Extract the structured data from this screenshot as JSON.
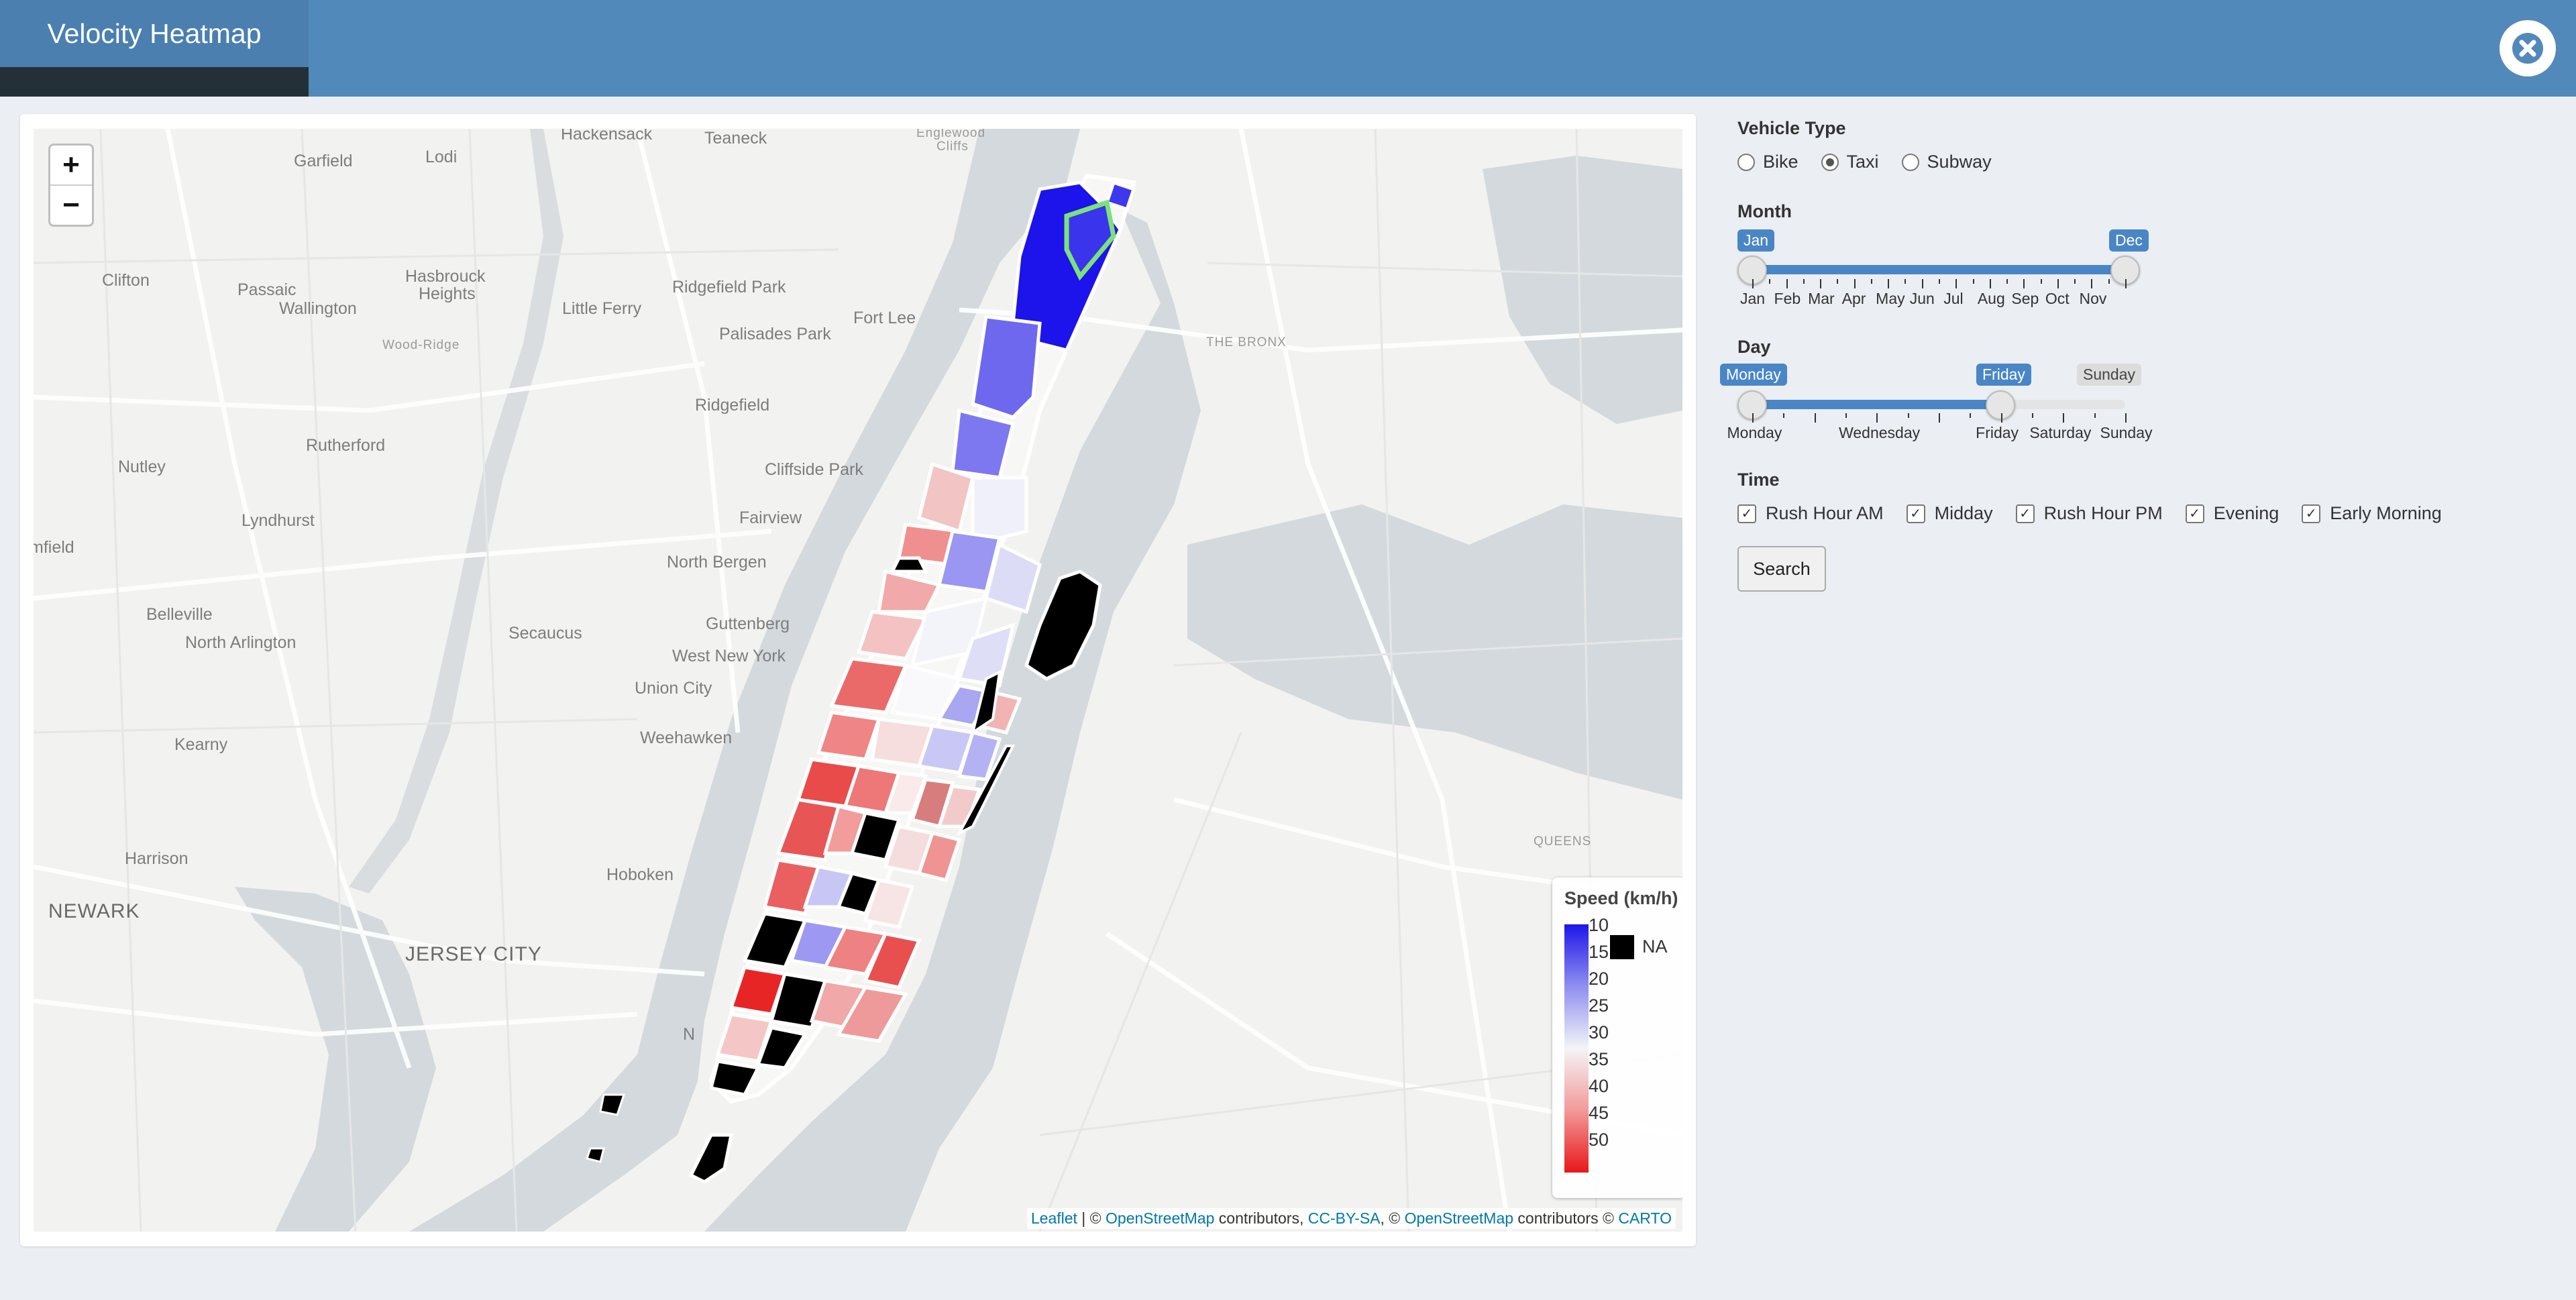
{
  "app": {
    "title": "Velocity Heatmap",
    "close_icon": "close-circle-icon"
  },
  "map": {
    "zoom_in": "+",
    "zoom_out": "−",
    "place_labels": [
      "Hackensack",
      "Teaneck",
      "Englewood",
      "Cliffs",
      "Garfield",
      "Lodi",
      "Clifton",
      "Passaic",
      "Wallington",
      "Hasbrouck",
      "Heights",
      "Ridgefield Park",
      "Little Ferry",
      "Fort Lee",
      "Palisades Park",
      "Wood-Ridge",
      "THE BRONX",
      "Ridgefield",
      "Rutherford",
      "Nutley",
      "Cliffside Park",
      "Lyndhurst",
      "Fairview",
      "North Bergen",
      "mfield",
      "Belleville",
      "Secaucus",
      "North Arlington",
      "Guttenberg",
      "West New York",
      "Union City",
      "Weehawken",
      "Kearny",
      "Harrison",
      "Hoboken",
      "NEWARK",
      "JERSEY CITY",
      "QUEENS",
      "N"
    ],
    "legend": {
      "title": "Speed (km/h)",
      "ticks": [
        "10",
        "15",
        "20",
        "25",
        "30",
        "35",
        "40",
        "45",
        "50"
      ],
      "na_label": "NA",
      "colors": {
        "slow": "#1f16e8",
        "mid": "#f4f4f7",
        "fast": "#e8171a",
        "na": "#000000"
      }
    },
    "attribution": {
      "leaflet": "Leaflet",
      "sep1": " | © ",
      "osm1": "OpenStreetMap",
      "mid1": " contributors, ",
      "carto_license": "CC-BY-SA",
      "mid2": ", © ",
      "osm2": "OpenStreetMap",
      "mid3": " contributors © ",
      "carto": "CARTO"
    }
  },
  "controls": {
    "vehicle_type": {
      "label": "Vehicle Type",
      "options": [
        "Bike",
        "Taxi",
        "Subway"
      ],
      "selected": "Taxi"
    },
    "month": {
      "label": "Month",
      "from": "Jan",
      "to": "Dec",
      "ticks": [
        "Jan",
        "Feb",
        "Mar",
        "Apr",
        "May",
        "Jun",
        "Jul",
        "Aug",
        "Sep",
        "Oct",
        "Nov"
      ]
    },
    "day": {
      "label": "Day",
      "from": "Monday",
      "to": "Friday",
      "max": "Sunday",
      "tick_labels": [
        "Monday",
        "Wednesday",
        "Friday",
        "Saturday",
        "Sunday"
      ]
    },
    "time": {
      "label": "Time",
      "options": [
        "Rush Hour AM",
        "Midday",
        "Rush Hour PM",
        "Evening",
        "Early Morning"
      ],
      "checked": [
        true,
        true,
        true,
        true,
        true
      ]
    },
    "search_button": "Search"
  }
}
